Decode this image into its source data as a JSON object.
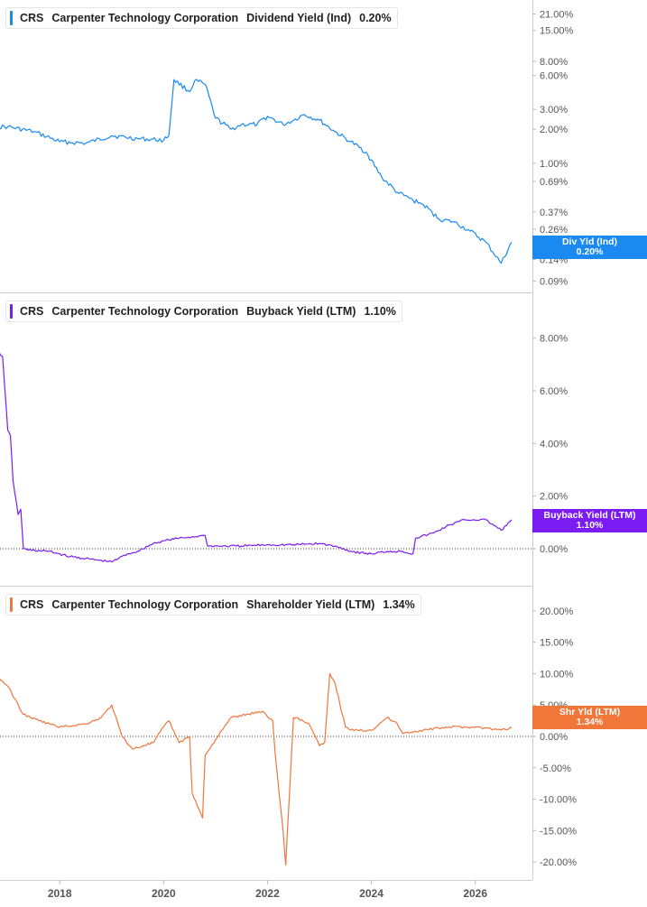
{
  "chart_data": [
    {
      "type": "line",
      "ticker": "CRS",
      "company": "Carpenter Technology Corporation",
      "metric": "Dividend Yield (Ind)",
      "current": "0.20%",
      "tag_label": "Div Yld (Ind)",
      "color": "#1a8af0",
      "scale": "log",
      "ylim": [
        0.08,
        25
      ],
      "y_ticks": [
        0.09,
        0.14,
        0.26,
        0.37,
        0.69,
        1.0,
        2.0,
        3.0,
        6.0,
        8.0,
        15.0,
        21.0
      ],
      "y_tick_labels": [
        "0.09%",
        "0.14%",
        "0.26%",
        "0.37%",
        "0.69%",
        "1.00%",
        "2.00%",
        "3.00%",
        "6.00%",
        "8.00%",
        "15.00%",
        "21.00%"
      ],
      "x": [
        2016.8,
        2017.0,
        2017.5,
        2018.0,
        2018.5,
        2019.0,
        2019.5,
        2020.0,
        2020.1,
        2020.2,
        2020.5,
        2020.6,
        2020.8,
        2021.0,
        2021.3,
        2021.5,
        2021.8,
        2022.0,
        2022.3,
        2022.5,
        2022.7,
        2023.0,
        2023.3,
        2023.6,
        2023.9,
        2024.2,
        2024.5,
        2024.8,
        2025.0,
        2025.3,
        2025.6,
        2025.9,
        2026.2,
        2026.5,
        2026.7
      ],
      "y": [
        2.1,
        2.1,
        1.9,
        1.55,
        1.5,
        1.75,
        1.65,
        1.6,
        1.75,
        5.5,
        4.3,
        5.4,
        5.0,
        2.5,
        2.0,
        2.2,
        2.2,
        2.6,
        2.2,
        2.4,
        2.7,
        2.4,
        1.9,
        1.55,
        1.25,
        0.75,
        0.55,
        0.47,
        0.43,
        0.32,
        0.3,
        0.25,
        0.2,
        0.13,
        0.2
      ]
    },
    {
      "type": "line",
      "ticker": "CRS",
      "company": "Carpenter Technology Corporation",
      "metric": "Buyback Yield (LTM)",
      "current": "1.10%",
      "tag_label": "Buyback Yield (LTM)",
      "color": "#7a1cf2",
      "scale": "linear",
      "ylim": [
        -1.2,
        9.5
      ],
      "y_ticks": [
        0,
        2,
        4,
        6,
        8
      ],
      "y_tick_labels": [
        "0.00%",
        "2.00%",
        "4.00%",
        "6.00%",
        "8.00%"
      ],
      "x": [
        2016.8,
        2016.9,
        2017.0,
        2017.05,
        2017.1,
        2017.2,
        2017.25,
        2017.3,
        2017.4,
        2017.8,
        2018.2,
        2018.6,
        2019.0,
        2019.3,
        2019.5,
        2019.8,
        2020.0,
        2020.3,
        2020.8,
        2020.85,
        2021.5,
        2022.0,
        2022.5,
        2023.0,
        2023.4,
        2023.6,
        2024.0,
        2024.3,
        2024.6,
        2024.8,
        2024.85,
        2025.2,
        2025.5,
        2025.8,
        2026.2,
        2026.5,
        2026.7
      ],
      "y": [
        7.5,
        7.3,
        4.5,
        4.3,
        2.6,
        1.3,
        1.5,
        0.0,
        -0.05,
        -0.1,
        -0.3,
        -0.4,
        -0.5,
        -0.2,
        -0.1,
        0.2,
        0.3,
        0.4,
        0.5,
        0.1,
        0.1,
        0.15,
        0.15,
        0.2,
        0.05,
        -0.1,
        -0.2,
        -0.1,
        -0.1,
        -0.2,
        0.4,
        0.6,
        0.9,
        1.1,
        1.1,
        0.7,
        1.1
      ]
    },
    {
      "type": "line",
      "ticker": "CRS",
      "company": "Carpenter Technology Corporation",
      "metric": "Shareholder Yield (LTM)",
      "current": "1.34%",
      "tag_label": "Shr Yld (LTM)",
      "color": "#f0763a",
      "scale": "linear",
      "ylim": [
        -22,
        23
      ],
      "y_ticks": [
        -20,
        -15,
        -10,
        -5,
        0,
        5,
        10,
        15,
        20
      ],
      "y_tick_labels": [
        "-20.00%",
        "-15.00%",
        "-10.00%",
        "-5.00%",
        "0.00%",
        "5.00%",
        "10.00%",
        "15.00%",
        "20.00%"
      ],
      "x": [
        2016.8,
        2017.0,
        2017.3,
        2017.6,
        2018.0,
        2018.5,
        2018.8,
        2019.0,
        2019.2,
        2019.4,
        2019.6,
        2019.8,
        2020.0,
        2020.1,
        2020.3,
        2020.5,
        2020.55,
        2020.75,
        2020.8,
        2021.0,
        2021.3,
        2021.6,
        2021.9,
        2022.1,
        2022.15,
        2022.3,
        2022.35,
        2022.5,
        2022.55,
        2022.8,
        2023.0,
        2023.1,
        2023.2,
        2023.3,
        2023.5,
        2023.6,
        2024.0,
        2024.3,
        2024.5,
        2024.6,
        2025.0,
        2025.5,
        2026.0,
        2026.5,
        2026.7
      ],
      "y": [
        9.5,
        8.0,
        3.5,
        2.5,
        1.5,
        2.0,
        3.0,
        5.0,
        0.0,
        -2.0,
        -1.5,
        -1.0,
        1.5,
        2.5,
        -1.0,
        0.0,
        -9.0,
        -13.0,
        -3.0,
        -0.5,
        3.0,
        3.5,
        4.0,
        2.5,
        -3.0,
        -15.0,
        -20.5,
        3.0,
        3.0,
        2.0,
        -1.5,
        -1.0,
        10.0,
        8.5,
        1.5,
        1.0,
        1.0,
        3.0,
        2.0,
        0.5,
        1.0,
        1.5,
        1.5,
        1.0,
        1.34
      ]
    }
  ],
  "x_axis": {
    "ticks": [
      2018,
      2020,
      2022,
      2024,
      2026
    ],
    "labels": [
      "2018",
      "2020",
      "2022",
      "2024",
      "2026"
    ],
    "xlim": [
      2016.85,
      2027.1
    ]
  }
}
